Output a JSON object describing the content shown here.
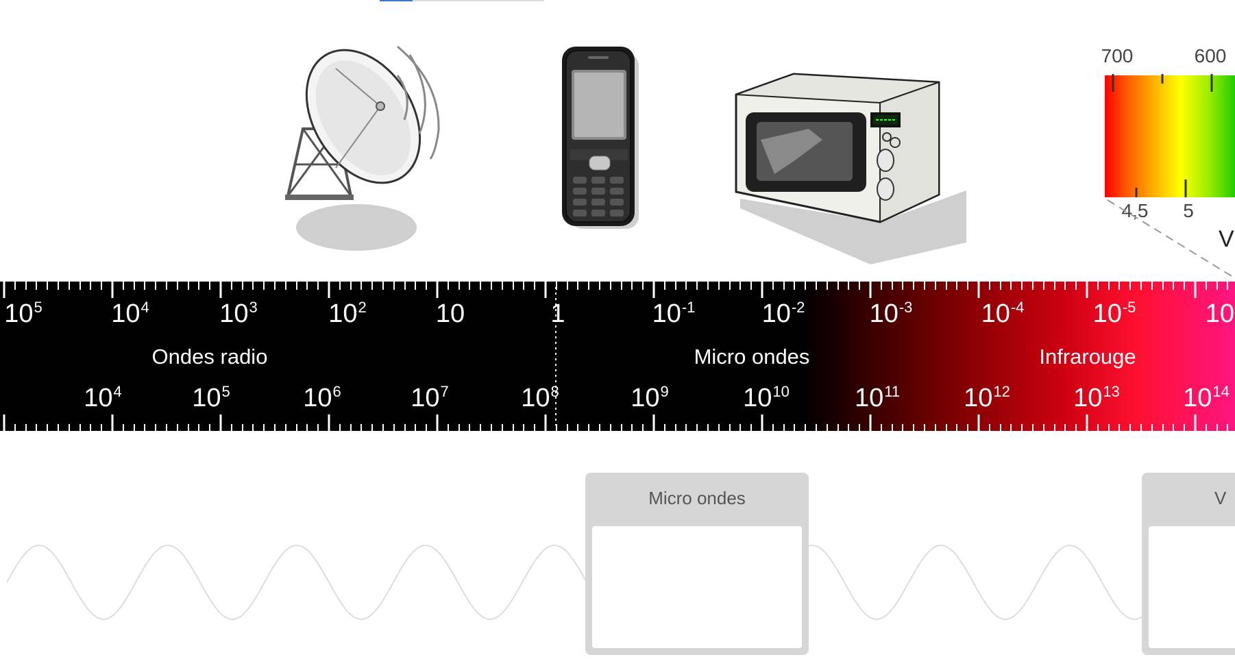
{
  "scale": {
    "wavelength_ticks": [
      {
        "base": "10",
        "exp": "5"
      },
      {
        "base": "10",
        "exp": "4"
      },
      {
        "base": "10",
        "exp": "3"
      },
      {
        "base": "10",
        "exp": "2"
      },
      {
        "base": "10",
        "exp": ""
      },
      {
        "base": "1",
        "exp": ""
      },
      {
        "base": "10",
        "exp": "-1"
      },
      {
        "base": "10",
        "exp": "-2"
      },
      {
        "base": "10",
        "exp": "-3"
      },
      {
        "base": "10",
        "exp": "-4"
      },
      {
        "base": "10",
        "exp": "-5"
      },
      {
        "base": "10",
        "exp": "-"
      }
    ],
    "frequency_ticks": [
      {
        "base": "10",
        "exp": "4"
      },
      {
        "base": "10",
        "exp": "5"
      },
      {
        "base": "10",
        "exp": "6"
      },
      {
        "base": "10",
        "exp": "7"
      },
      {
        "base": "10",
        "exp": "8"
      },
      {
        "base": "10",
        "exp": "9"
      },
      {
        "base": "10",
        "exp": "10"
      },
      {
        "base": "10",
        "exp": "11"
      },
      {
        "base": "10",
        "exp": "12"
      },
      {
        "base": "10",
        "exp": "13"
      },
      {
        "base": "10",
        "exp": "14"
      }
    ],
    "bands": {
      "radio": "Ondes radio",
      "microwave": "Micro ondes",
      "infrared": "Infrarouge"
    }
  },
  "visible_inset": {
    "wavelength_labels": [
      "700",
      "600"
    ],
    "frequency_labels": [
      "4,5",
      "5"
    ],
    "label_partial": "V"
  },
  "cards": {
    "microwave_title": "Micro ondes",
    "visible_title_partial": "V"
  },
  "icons": [
    "satellite-dish-icon",
    "mobile-phone-icon",
    "microwave-oven-icon"
  ],
  "colors": {
    "band_start": "#000000",
    "infrared": "#cc0010",
    "card_bg": "#d6d6d6",
    "wave_stroke": "#dddddd"
  }
}
